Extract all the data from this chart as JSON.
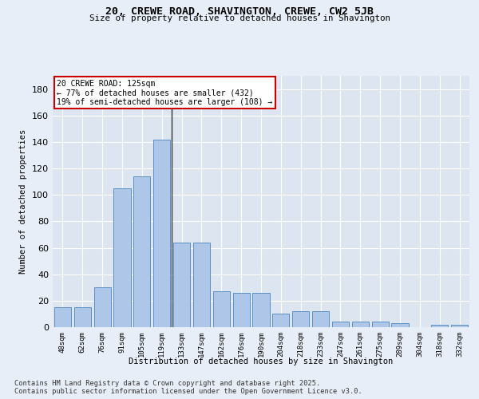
{
  "title": "20, CREWE ROAD, SHAVINGTON, CREWE, CW2 5JB",
  "subtitle": "Size of property relative to detached houses in Shavington",
  "xlabel": "Distribution of detached houses by size in Shavington",
  "ylabel": "Number of detached properties",
  "categories": [
    "48sqm",
    "62sqm",
    "76sqm",
    "91sqm",
    "105sqm",
    "119sqm",
    "133sqm",
    "147sqm",
    "162sqm",
    "176sqm",
    "190sqm",
    "204sqm",
    "218sqm",
    "233sqm",
    "247sqm",
    "261sqm",
    "275sqm",
    "289sqm",
    "304sqm",
    "318sqm",
    "332sqm"
  ],
  "values": [
    15,
    15,
    30,
    105,
    114,
    142,
    64,
    64,
    27,
    26,
    26,
    10,
    12,
    12,
    4,
    4,
    4,
    3,
    0,
    2,
    2
  ],
  "bar_color": "#aec6e8",
  "bar_edge_color": "#5a8fc2",
  "highlight_index": 5,
  "highlight_line_color": "#333333",
  "annotation_text": "20 CREWE ROAD: 125sqm\n← 77% of detached houses are smaller (432)\n19% of semi-detached houses are larger (108) →",
  "annotation_box_color": "#ffffff",
  "annotation_box_edge_color": "#cc0000",
  "bg_color": "#e8eef7",
  "plot_bg_color": "#dde6f0",
  "grid_color": "#ffffff",
  "footer_line1": "Contains HM Land Registry data © Crown copyright and database right 2025.",
  "footer_line2": "Contains public sector information licensed under the Open Government Licence v3.0.",
  "ylim": [
    0,
    190
  ],
  "yticks": [
    0,
    20,
    40,
    60,
    80,
    100,
    120,
    140,
    160,
    180
  ]
}
